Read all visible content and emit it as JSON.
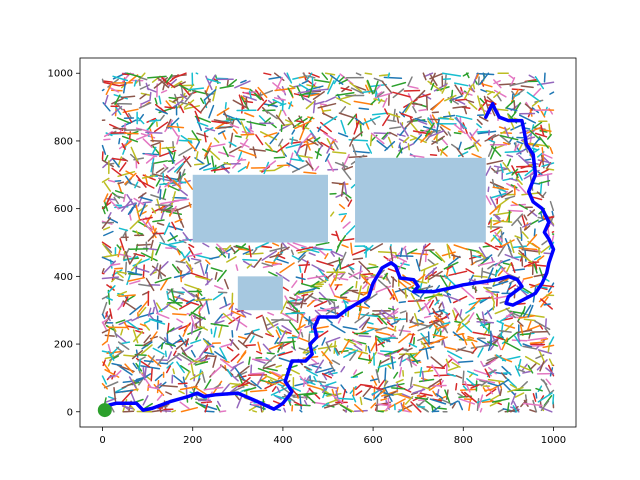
{
  "chart_data": {
    "type": "scatter",
    "title": "",
    "xlabel": "",
    "ylabel": "",
    "xlim": [
      -50,
      1050
    ],
    "ylim": [
      -45,
      1045
    ],
    "xticks": [
      0,
      200,
      400,
      600,
      800,
      1000
    ],
    "yticks": [
      0,
      200,
      400,
      600,
      800,
      1000
    ],
    "xtick_labels": [
      "0",
      "200",
      "400",
      "600",
      "800",
      "1000"
    ],
    "ytick_labels": [
      "0",
      "200",
      "400",
      "600",
      "800",
      "1000"
    ],
    "grid": false,
    "legend": "none",
    "tree_region": {
      "x": [
        0,
        1000
      ],
      "y": [
        0,
        1000
      ]
    },
    "obstacles": [
      {
        "name": "obstacle-1",
        "x": [
          200,
          500
        ],
        "y": [
          500,
          700
        ]
      },
      {
        "name": "obstacle-2",
        "x": [
          560,
          850
        ],
        "y": [
          500,
          750
        ]
      },
      {
        "name": "obstacle-3",
        "x": [
          300,
          400
        ],
        "y": [
          300,
          400
        ]
      }
    ],
    "start": {
      "x": 5,
      "y": 5
    },
    "goal": {
      "x": 850,
      "y": 870
    },
    "path": {
      "color": "#0000ff",
      "points": [
        [
          5,
          5
        ],
        [
          15,
          20
        ],
        [
          30,
          25
        ],
        [
          75,
          25
        ],
        [
          90,
          5
        ],
        [
          110,
          10
        ],
        [
          150,
          30
        ],
        [
          190,
          45
        ],
        [
          210,
          55
        ],
        [
          225,
          45
        ],
        [
          250,
          50
        ],
        [
          300,
          55
        ],
        [
          335,
          35
        ],
        [
          380,
          8
        ],
        [
          400,
          25
        ],
        [
          415,
          50
        ],
        [
          420,
          60
        ],
        [
          405,
          90
        ],
        [
          420,
          150
        ],
        [
          450,
          150
        ],
        [
          465,
          170
        ],
        [
          460,
          200
        ],
        [
          475,
          220
        ],
        [
          470,
          250
        ],
        [
          480,
          280
        ],
        [
          520,
          280
        ],
        [
          540,
          300
        ],
        [
          565,
          320
        ],
        [
          590,
          340
        ],
        [
          600,
          380
        ],
        [
          620,
          425
        ],
        [
          640,
          440
        ],
        [
          650,
          430
        ],
        [
          660,
          395
        ],
        [
          690,
          390
        ],
        [
          700,
          370
        ],
        [
          690,
          355
        ],
        [
          735,
          355
        ],
        [
          770,
          365
        ],
        [
          800,
          375
        ],
        [
          850,
          385
        ],
        [
          875,
          390
        ],
        [
          900,
          400
        ],
        [
          920,
          390
        ],
        [
          930,
          370
        ],
        [
          900,
          340
        ],
        [
          895,
          320
        ],
        [
          910,
          315
        ],
        [
          925,
          325
        ],
        [
          960,
          350
        ],
        [
          975,
          380
        ],
        [
          985,
          410
        ],
        [
          990,
          440
        ],
        [
          1000,
          480
        ],
        [
          990,
          510
        ],
        [
          980,
          530
        ],
        [
          990,
          560
        ],
        [
          975,
          600
        ],
        [
          955,
          620
        ],
        [
          945,
          650
        ],
        [
          960,
          700
        ],
        [
          955,
          760
        ],
        [
          940,
          790
        ],
        [
          935,
          830
        ],
        [
          930,
          860
        ],
        [
          900,
          860
        ],
        [
          880,
          870
        ],
        [
          870,
          895
        ],
        [
          865,
          910
        ],
        [
          850,
          870
        ]
      ]
    },
    "tree_colors": [
      "#1f77b4",
      "#ff7f0e",
      "#2ca02c",
      "#d62728",
      "#9467bd",
      "#8c564b",
      "#e377c2",
      "#7f7f7f",
      "#bcbd22",
      "#17becf"
    ],
    "obstacle_color": "#a6c8e0",
    "start_color": "#2ca02c"
  }
}
